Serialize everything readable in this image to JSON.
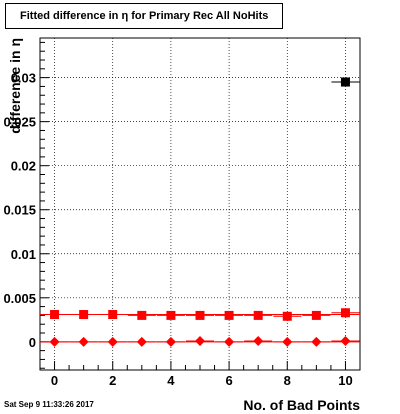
{
  "chart_data": {
    "type": "scatter",
    "title": "Fitted difference in η for Primary Rec All NoHits",
    "xlabel": "No. of Bad Points",
    "ylabel": "difference in η",
    "xlim": [
      -0.5,
      10.5
    ],
    "ylim": [
      -0.0032,
      0.0345
    ],
    "grid": true,
    "x_ticks": [
      0,
      2,
      4,
      6,
      8,
      10
    ],
    "x_tick_labels": [
      "0",
      "2",
      "4",
      "6",
      "8",
      "10"
    ],
    "y_ticks": [
      0,
      0.005,
      0.01,
      0.015,
      0.02,
      0.025,
      0.03
    ],
    "y_tick_labels": [
      "0",
      "0.005",
      "0.01",
      "0.015",
      "0.02",
      "0.025",
      "0.03"
    ],
    "series": [
      {
        "marker": "square",
        "color": "#ff0000",
        "x": [
          0,
          1,
          2,
          3,
          4,
          5,
          6,
          7,
          8,
          9,
          10
        ],
        "y": [
          0.0031,
          0.0031,
          0.0031,
          0.003,
          0.003,
          0.003,
          0.003,
          0.003,
          0.0029,
          0.003,
          0.0033
        ]
      },
      {
        "marker": "diamond",
        "color": "#ff0000",
        "x": [
          0,
          1,
          2,
          3,
          4,
          5,
          6,
          7,
          8,
          9,
          10
        ],
        "y": [
          0,
          0,
          0,
          0,
          0,
          0.0001,
          0,
          0.0001,
          0,
          0,
          0.0001
        ]
      },
      {
        "marker": "square",
        "color": "#000000",
        "x": [
          10
        ],
        "y": [
          0.0295
        ]
      }
    ],
    "fit_lines": [
      {
        "color": "#ff0000",
        "y": 0.0031
      },
      {
        "color": "#ff0000",
        "y": 0.0
      }
    ]
  },
  "timestamp": "Sat Sep  9 11:33:26 2017"
}
